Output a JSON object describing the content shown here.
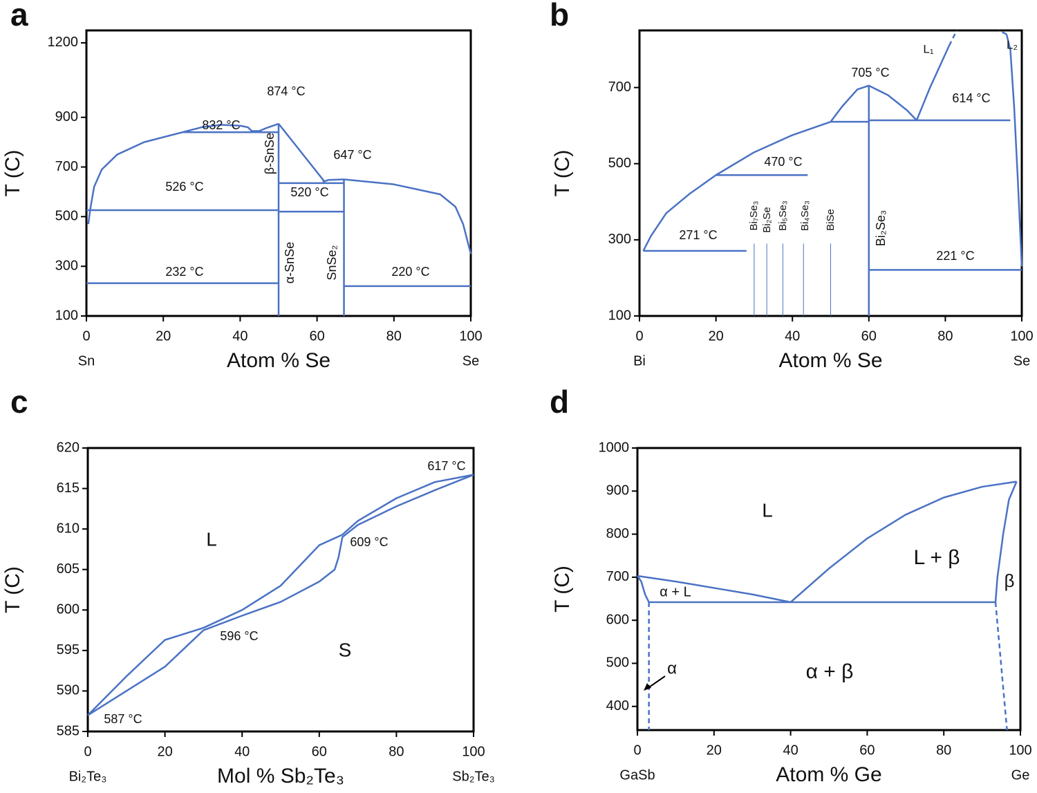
{
  "chart_data": [
    {
      "type": "line",
      "panel": "a",
      "xlabel": "Atom % Se",
      "ylabel": "T (C)",
      "end_labels": [
        "Sn",
        "Se"
      ],
      "xlim": [
        0,
        100
      ],
      "ylim": [
        100,
        1250
      ],
      "xticks": [
        0,
        20,
        40,
        60,
        80,
        100
      ],
      "yticks": [
        100,
        300,
        500,
        700,
        900,
        1200
      ],
      "series": [
        {
          "color": "#4a72c4",
          "x": [
            0.5,
            1,
            2,
            4,
            8,
            15,
            25
          ],
          "values": [
            470,
            530,
            620,
            690,
            750,
            800,
            840
          ]
        },
        {
          "color": "#4a72c4",
          "x": [
            25,
            30,
            35,
            40,
            42,
            43,
            45,
            47,
            50
          ],
          "values": [
            840,
            860,
            870,
            866,
            860,
            845,
            845,
            858,
            874
          ]
        },
        {
          "color": "#4a72c4",
          "x": [
            25,
            50
          ],
          "values": [
            840,
            840
          ]
        },
        {
          "color": "#4a72c4",
          "x": [
            50,
            62
          ],
          "values": [
            874,
            640
          ]
        },
        {
          "color": "#4a72c4",
          "x": [
            61.5,
            63,
            67,
            80,
            92,
            96,
            98,
            100
          ],
          "values": [
            640,
            648,
            650,
            630,
            590,
            540,
            470,
            350
          ]
        },
        {
          "color": "#4a72c4",
          "x": [
            50,
            67
          ],
          "values": [
            635,
            635
          ]
        },
        {
          "color": "#4a72c4",
          "x": [
            0,
            50
          ],
          "values": [
            526,
            526
          ]
        },
        {
          "color": "#4a72c4",
          "x": [
            50,
            67
          ],
          "values": [
            520,
            520
          ]
        },
        {
          "color": "#4a72c4",
          "x": [
            0,
            50
          ],
          "values": [
            232,
            232
          ]
        },
        {
          "color": "#4a72c4",
          "x": [
            67,
            100
          ],
          "values": [
            220,
            220
          ]
        },
        {
          "color": "#4a72c4",
          "x": [
            50,
            50
          ],
          "values": [
            100,
            874
          ]
        },
        {
          "color": "#4a72c4",
          "x": [
            67,
            67
          ],
          "values": [
            100,
            648
          ]
        }
      ],
      "annotations": [
        "874 °C",
        "832 °C",
        "647 °C",
        "526 °C",
        "520 °C",
        "232 °C",
        "220 °C",
        "β-SnSe",
        "α-SnSe",
        "SnSe₂"
      ]
    },
    {
      "type": "line",
      "panel": "b",
      "xlabel": "Atom % Se",
      "ylabel": "T (C)",
      "end_labels": [
        "Bi",
        "Se"
      ],
      "xlim": [
        0,
        100
      ],
      "ylim": [
        100,
        850
      ],
      "xticks": [
        0,
        20,
        40,
        60,
        80,
        100
      ],
      "yticks": [
        100,
        300,
        500,
        700
      ],
      "series": [
        {
          "color": "#4a72c4",
          "x": [
            1,
            3,
            7,
            13,
            20,
            30,
            40,
            50
          ],
          "values": [
            271,
            310,
            370,
            420,
            470,
            530,
            575,
            610
          ]
        },
        {
          "color": "#4a72c4",
          "x": [
            50,
            53,
            57,
            60,
            65,
            70,
            72.5
          ],
          "values": [
            610,
            650,
            695,
            705,
            680,
            640,
            614
          ]
        },
        {
          "color": "#4a72c4",
          "x": [
            50,
            60
          ],
          "values": [
            610,
            610
          ]
        },
        {
          "color": "#4a72c4",
          "x": [
            60,
            97
          ],
          "values": [
            614,
            614
          ]
        },
        {
          "color": "#4a72c4",
          "x": [
            72.5,
            76,
            81
          ],
          "values": [
            614,
            700,
            810
          ]
        },
        {
          "color": "#4a72c4",
          "dashed": true,
          "x": [
            81,
            83
          ],
          "values": [
            810,
            850
          ]
        },
        {
          "color": "#4a72c4",
          "x": [
            100,
            99,
            98,
            97,
            96
          ],
          "values": [
            230,
            450,
            650,
            800,
            840
          ]
        },
        {
          "color": "#4a72c4",
          "dashed": true,
          "x": [
            96,
            94
          ],
          "values": [
            840,
            850
          ]
        },
        {
          "color": "#4a72c4",
          "x": [
            20,
            44
          ],
          "values": [
            470,
            470
          ]
        },
        {
          "color": "#4a72c4",
          "x": [
            1,
            28
          ],
          "values": [
            271,
            271
          ]
        },
        {
          "color": "#4a72c4",
          "x": [
            60,
            100
          ],
          "values": [
            221,
            221
          ]
        },
        {
          "color": "#4a72c4",
          "x": [
            60,
            60
          ],
          "values": [
            100,
            705
          ]
        },
        {
          "color": "#4a72c4",
          "thin": true,
          "x": [
            30,
            30
          ],
          "values": [
            100,
            290
          ]
        },
        {
          "color": "#4a72c4",
          "thin": true,
          "x": [
            33.3,
            33.3
          ],
          "values": [
            100,
            290
          ]
        },
        {
          "color": "#4a72c4",
          "thin": true,
          "x": [
            37.5,
            37.5
          ],
          "values": [
            100,
            290
          ]
        },
        {
          "color": "#4a72c4",
          "thin": true,
          "x": [
            42.9,
            42.9
          ],
          "values": [
            100,
            290
          ]
        },
        {
          "color": "#4a72c4",
          "thin": true,
          "x": [
            50,
            50
          ],
          "values": [
            100,
            290
          ]
        }
      ],
      "annotations": [
        "705 °C",
        "614 °C",
        "470 °C",
        "271 °C",
        "221 °C",
        "L₁",
        "L₂",
        "Bi₇Se₃",
        "Bi₂Se",
        "Bi₅Se₃",
        "Bi₄Se₃",
        "BiSe",
        "Bi₂Se₃"
      ]
    },
    {
      "type": "line",
      "panel": "c",
      "xlabel": "Mol % Sb₂Te₃",
      "ylabel": "T (C)",
      "end_labels": [
        "Bi₂Te₃",
        "Sb₂Te₃"
      ],
      "xlim": [
        0,
        100
      ],
      "ylim": [
        585,
        620
      ],
      "xticks": [
        0,
        20,
        40,
        60,
        80,
        100
      ],
      "yticks": [
        585,
        590,
        595,
        600,
        605,
        610,
        615,
        620
      ],
      "series": [
        {
          "color": "#4a72c4",
          "x": [
            0,
            10,
            20,
            30,
            40,
            50,
            55,
            60,
            66,
            70,
            80,
            90,
            100
          ],
          "values": [
            587,
            591.8,
            596.3,
            597.8,
            600,
            603,
            605.5,
            608,
            609.3,
            611,
            613.8,
            615.8,
            616.7
          ]
        },
        {
          "color": "#4a72c4",
          "x": [
            0,
            10,
            20,
            30,
            40,
            50,
            60,
            64,
            65,
            66,
            70,
            80,
            90,
            100
          ],
          "values": [
            587,
            590,
            593,
            597.5,
            599.3,
            601,
            603.5,
            605,
            606.5,
            609,
            610.5,
            612.8,
            614.8,
            616.7
          ]
        }
      ],
      "annotations": [
        "617 °C",
        "609 °C",
        "596 °C",
        "587 °C",
        "L",
        "S"
      ]
    },
    {
      "type": "line",
      "panel": "d",
      "xlabel": "Atom % Ge",
      "ylabel": "T (C)",
      "end_labels": [
        "GaSb",
        "Ge"
      ],
      "xlim": [
        0,
        100
      ],
      "ylim": [
        345,
        1000
      ],
      "xticks": [
        0,
        20,
        40,
        60,
        80,
        100
      ],
      "yticks": [
        400,
        500,
        600,
        700,
        800,
        900,
        1000
      ],
      "series": [
        {
          "color": "#4a72c4",
          "x": [
            0,
            10,
            20,
            30,
            40
          ],
          "values": [
            703,
            690,
            675,
            660,
            642
          ]
        },
        {
          "color": "#4a72c4",
          "x": [
            40,
            50,
            60,
            70,
            80,
            90,
            99
          ],
          "values": [
            642,
            720,
            790,
            845,
            885,
            910,
            922
          ]
        },
        {
          "color": "#4a72c4",
          "x": [
            99,
            97,
            95.5,
            94,
            93.5
          ],
          "values": [
            922,
            880,
            800,
            700,
            642
          ]
        },
        {
          "color": "#4a72c4",
          "x": [
            3,
            93.5
          ],
          "values": [
            642,
            642
          ]
        },
        {
          "color": "#4a72c4",
          "x": [
            0,
            1,
            2,
            3
          ],
          "values": [
            703,
            690,
            660,
            642
          ]
        },
        {
          "color": "#4a72c4",
          "dashed": true,
          "x": [
            3,
            3
          ],
          "values": [
            642,
            345
          ]
        },
        {
          "color": "#4a72c4",
          "dashed": true,
          "x": [
            93.5,
            96.5
          ],
          "values": [
            642,
            345
          ]
        }
      ],
      "annotations": [
        "L",
        "L + β",
        "β",
        "α + L",
        "α + β",
        "α"
      ]
    }
  ]
}
